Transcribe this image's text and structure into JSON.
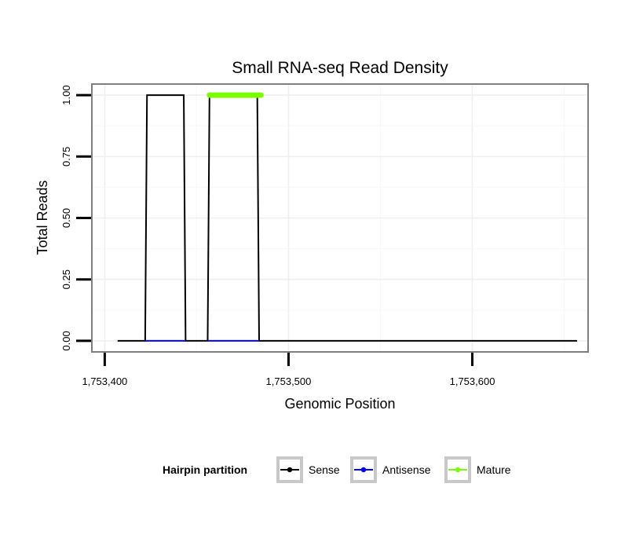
{
  "chart_data": {
    "type": "line",
    "title": "Small RNA-seq Read Density",
    "xlabel": "Genomic Position",
    "ylabel": "Total Reads",
    "xlim": [
      1753393,
      1753663
    ],
    "ylim": [
      -0.045,
      1.045
    ],
    "x_ticks": [
      1753400,
      1753500,
      1753600
    ],
    "x_tick_labels": [
      "1,753,400",
      "1,753,500",
      "1,753,600"
    ],
    "y_ticks": [
      0,
      0.25,
      0.5,
      0.75,
      1.0
    ],
    "y_tick_labels": [
      "0.00",
      "0.25",
      "0.50",
      "0.75",
      "1.00"
    ],
    "grid": true,
    "legend_position": "bottom",
    "legend_title": "Hairpin partition",
    "series": [
      {
        "name": "Sense",
        "color": "#000000",
        "x": [
          1753407,
          1753422,
          1753423,
          1753443,
          1753444,
          1753456,
          1753457,
          1753483,
          1753484,
          1753657
        ],
        "y": [
          0,
          0,
          1,
          1,
          0,
          0,
          1,
          1,
          0,
          0
        ]
      },
      {
        "name": "Antisense",
        "color": "#0000ff",
        "x": [
          1753422,
          1753444,
          1753456,
          1753484
        ],
        "y": [
          0,
          0,
          0,
          0
        ],
        "segments": [
          [
            0,
            1
          ],
          [
            2,
            3
          ]
        ]
      },
      {
        "name": "Mature",
        "color": "#7cfc00",
        "x": [
          1753457,
          1753485
        ],
        "y": [
          1,
          1
        ]
      }
    ]
  }
}
